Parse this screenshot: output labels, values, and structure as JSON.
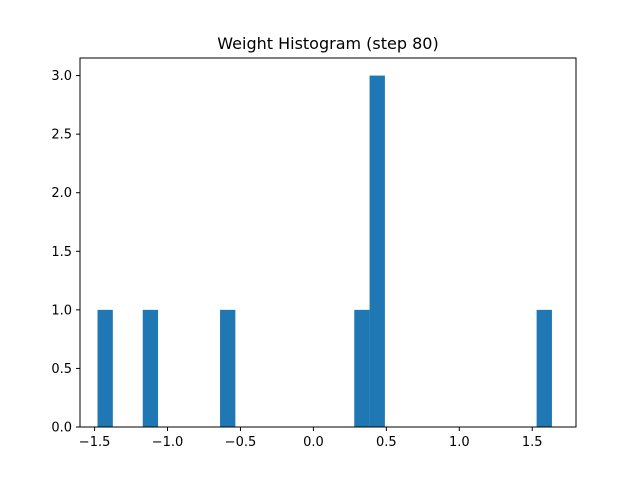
{
  "chart_data": {
    "type": "bar",
    "title": "Weight Histogram (step 80)",
    "xlabel": "",
    "ylabel": "",
    "xlim": [
      -1.6,
      1.8
    ],
    "ylim": [
      0,
      3.15
    ],
    "grid": false,
    "bar_color": "#1f77b4",
    "x_ticks": [
      {
        "value": -1.5,
        "label": "−1.5"
      },
      {
        "value": -1.0,
        "label": "−1.0"
      },
      {
        "value": -0.5,
        "label": "−0.5"
      },
      {
        "value": 0.0,
        "label": "0.0"
      },
      {
        "value": 0.5,
        "label": "0.5"
      },
      {
        "value": 1.0,
        "label": "1.0"
      },
      {
        "value": 1.5,
        "label": "1.5"
      }
    ],
    "y_ticks": [
      {
        "value": 0.0,
        "label": "0.0"
      },
      {
        "value": 0.5,
        "label": "0.5"
      },
      {
        "value": 1.0,
        "label": "1.0"
      },
      {
        "value": 1.5,
        "label": "1.5"
      },
      {
        "value": 2.0,
        "label": "2.0"
      },
      {
        "value": 2.5,
        "label": "2.5"
      },
      {
        "value": 3.0,
        "label": "3.0"
      }
    ],
    "bins": [
      {
        "start": -1.48,
        "end": -1.375,
        "count": 1
      },
      {
        "start": -1.17,
        "end": -1.065,
        "count": 1
      },
      {
        "start": -0.64,
        "end": -0.535,
        "count": 1
      },
      {
        "start": 0.28,
        "end": 0.385,
        "count": 1
      },
      {
        "start": 0.385,
        "end": 0.49,
        "count": 3
      },
      {
        "start": 1.53,
        "end": 1.635,
        "count": 1
      }
    ]
  }
}
